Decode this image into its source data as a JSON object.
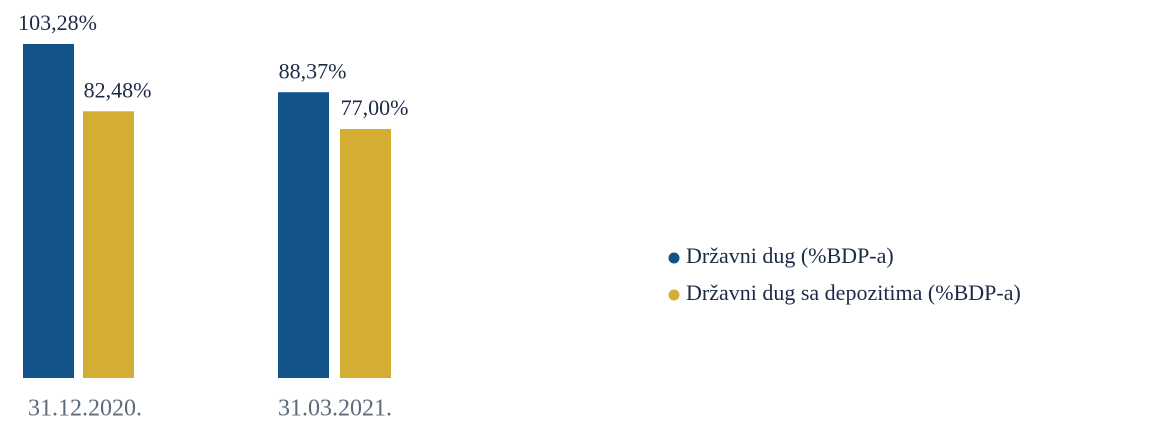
{
  "chart_data": {
    "type": "bar",
    "categories": [
      "31.12.2020.",
      "31.03.2021."
    ],
    "series": [
      {
        "name": "Državni dug (%BDP-a)",
        "color": "#12538a",
        "values": [
          103.28,
          88.37
        ],
        "value_labels": [
          "103,28%",
          "88,37%"
        ]
      },
      {
        "name": "Državni dug sa depozitima (%BDP-a)",
        "color": "#d4ad35",
        "values": [
          82.48,
          77.0
        ],
        "value_labels": [
          "82,48%",
          "77,00%"
        ]
      }
    ],
    "legend": "right"
  }
}
